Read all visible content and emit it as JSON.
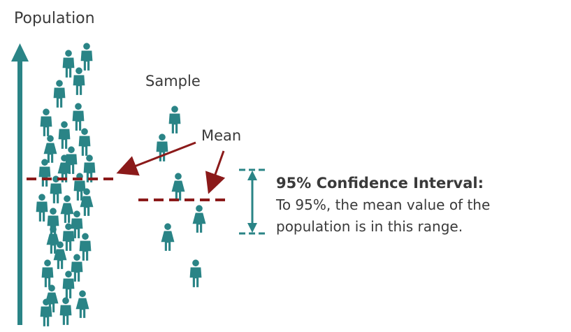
{
  "population": {
    "label": "Population",
    "axis_icon": "arrow-up-icon"
  },
  "sample": {
    "label": "Sample"
  },
  "mean": {
    "label": "Mean"
  },
  "confidence_interval": {
    "title": "95% Confidence Interval:",
    "line1": "To 95%, the mean value of the",
    "line2": "population is in this range."
  },
  "colors": {
    "figure": "#2a8486",
    "mean_line": "#8b1a1a",
    "text": "#3a3a3a"
  },
  "icons": [
    "person-icon",
    "woman-icon"
  ]
}
